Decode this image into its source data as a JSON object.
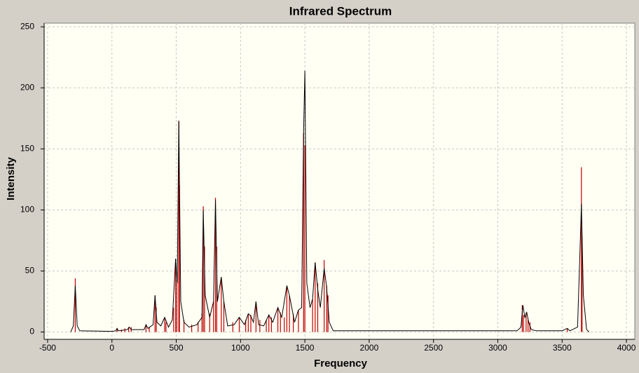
{
  "chart_data": {
    "type": "line",
    "title": "Infrared Spectrum",
    "x_label": "Frequency",
    "y_label": "Intensity",
    "xlim": [
      -527,
      4065
    ],
    "ylim": [
      -6,
      253
    ],
    "xticks": [
      -500,
      0,
      500,
      1000,
      1500,
      2000,
      2500,
      3000,
      3500,
      4000
    ],
    "yticks": [
      0,
      50,
      100,
      150,
      200,
      250
    ],
    "grid": true,
    "sticks": {
      "color": "#c00000",
      "x": [
        -285,
        40,
        75,
        100,
        130,
        150,
        265,
        290,
        335,
        345,
        410,
        420,
        480,
        495,
        505,
        520,
        525,
        560,
        620,
        670,
        700,
        710,
        720,
        760,
        790,
        805,
        815,
        850,
        870,
        940,
        990,
        1040,
        1060,
        1080,
        1120,
        1150,
        1200,
        1220,
        1240,
        1290,
        1310,
        1340,
        1360,
        1380,
        1410,
        1450,
        1490,
        1500,
        1560,
        1580,
        1600,
        1650,
        1670,
        1680,
        3190,
        3200,
        3220,
        3235,
        3250,
        3540,
        3650,
        3655
      ],
      "values": [
        44,
        3,
        2,
        3,
        4,
        4,
        6,
        4,
        30,
        20,
        12,
        8,
        20,
        60,
        45,
        173,
        120,
        10,
        6,
        8,
        15,
        103,
        70,
        15,
        25,
        110,
        70,
        45,
        25,
        8,
        12,
        10,
        15,
        14,
        25,
        10,
        10,
        14,
        12,
        20,
        16,
        12,
        38,
        30,
        15,
        18,
        163,
        153,
        27,
        57,
        40,
        59,
        38,
        30,
        22,
        14,
        16,
        10,
        8,
        3,
        135,
        78
      ]
    },
    "series": [
      {
        "color": "#000000",
        "x": [
          -320,
          -300,
          -285,
          -270,
          -250,
          0,
          30,
          40,
          50,
          120,
          135,
          150,
          250,
          265,
          280,
          320,
          335,
          350,
          380,
          410,
          440,
          470,
          495,
          508,
          520,
          535,
          560,
          600,
          660,
          700,
          710,
          725,
          760,
          790,
          805,
          820,
          850,
          870,
          900,
          950,
          990,
          1030,
          1060,
          1080,
          1100,
          1120,
          1140,
          1180,
          1220,
          1250,
          1290,
          1320,
          1360,
          1380,
          1420,
          1450,
          1475,
          1490,
          1500,
          1515,
          1540,
          1560,
          1580,
          1600,
          1620,
          1650,
          1668,
          1690,
          1720,
          2000,
          2400,
          3000,
          3150,
          3180,
          3195,
          3210,
          3225,
          3240,
          3260,
          3300,
          3500,
          3540,
          3560,
          3620,
          3640,
          3650,
          3665,
          3690,
          3710
        ],
        "values": [
          0,
          5,
          38,
          5,
          1,
          0.5,
          1,
          3,
          1,
          2,
          4,
          2,
          2,
          6,
          3,
          6,
          30,
          8,
          5,
          12,
          4,
          10,
          60,
          40,
          173,
          25,
          8,
          4,
          6,
          12,
          100,
          30,
          12,
          25,
          108,
          25,
          45,
          25,
          5,
          6,
          12,
          6,
          15,
          13,
          8,
          25,
          6,
          5,
          14,
          8,
          20,
          12,
          38,
          30,
          8,
          18,
          20,
          163,
          214,
          40,
          20,
          27,
          57,
          35,
          20,
          52,
          38,
          8,
          1,
          1,
          1,
          1,
          1,
          4,
          22,
          12,
          16,
          8,
          2,
          1,
          1,
          3,
          1,
          4,
          70,
          105,
          30,
          2,
          0
        ]
      }
    ]
  }
}
